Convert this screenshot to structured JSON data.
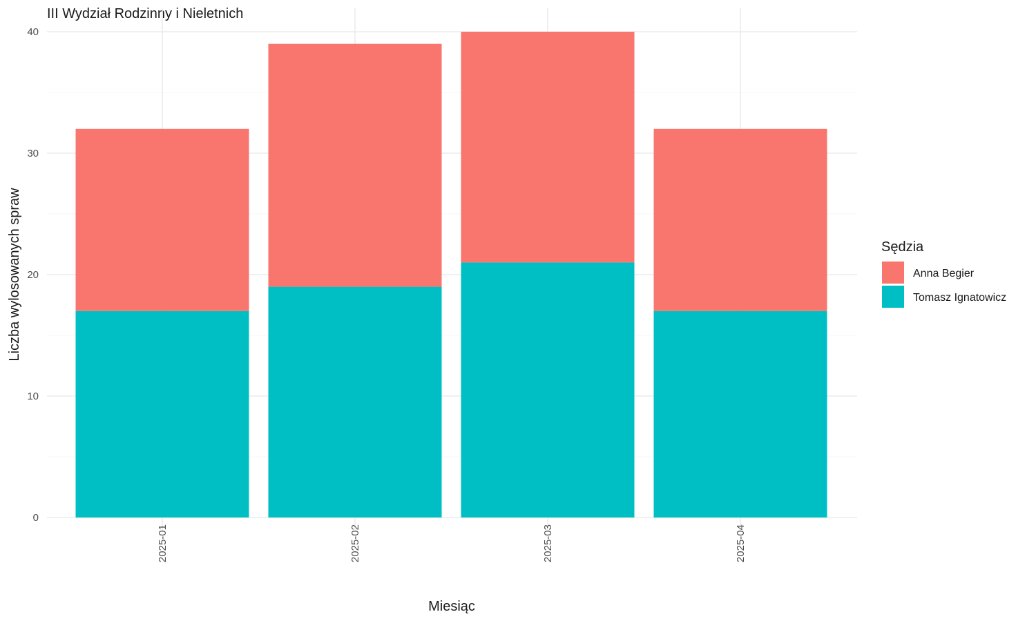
{
  "chart_data": {
    "type": "bar",
    "stacked": true,
    "title": "III Wydział Rodzinny i Nieletnich",
    "xlabel": "Miesiąc",
    "ylabel": "Liczba wylosowanych spraw",
    "categories": [
      "2025-01",
      "2025-02",
      "2025-03",
      "2025-04"
    ],
    "ylim": [
      0,
      40
    ],
    "yticks": [
      0,
      10,
      20,
      30,
      40
    ],
    "grid": true,
    "legend": {
      "title": "Sędzia",
      "placement": "right"
    },
    "series": [
      {
        "name": "Tomasz Ignatowicz",
        "color": "#00BFC4",
        "values": [
          17,
          19,
          21,
          17
        ]
      },
      {
        "name": "Anna Begier",
        "color": "#F8766D",
        "values": [
          15,
          20,
          19,
          15
        ]
      }
    ]
  }
}
